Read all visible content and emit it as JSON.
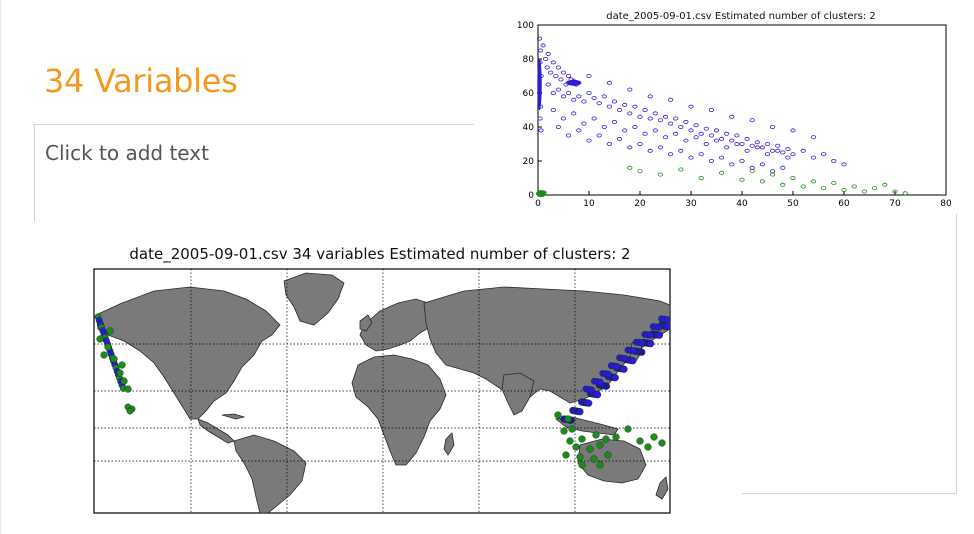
{
  "slide": {
    "title": "34 Variables",
    "placeholder_text": "Click to add text"
  },
  "colors": {
    "title": "#f39a1e",
    "cluster_blue": "#2b1cd6",
    "cluster_green": "#1c8a1c",
    "land": "#7a7a7a"
  },
  "chart_data": [
    {
      "type": "scatter",
      "title": "date_2005-09-01.csv   Estimated number of clusters: 2",
      "xlim": [
        0,
        80
      ],
      "ylim": [
        0,
        100
      ],
      "xticks": [
        0,
        10,
        20,
        30,
        40,
        50,
        60,
        70,
        80
      ],
      "yticks": [
        0,
        20,
        40,
        60,
        80,
        100
      ],
      "grid": false,
      "series": [
        {
          "color": "#2b1cd6",
          "points": [
            [
              0.3,
              92
            ],
            [
              0.5,
              85
            ],
            [
              0.4,
              78
            ],
            [
              0.6,
              70
            ],
            [
              0.3,
              60
            ],
            [
              0.5,
              52
            ],
            [
              0.4,
              45
            ],
            [
              0.6,
              38
            ],
            [
              1,
              88
            ],
            [
              1.5,
              80
            ],
            [
              2,
              83
            ],
            [
              1.8,
              75
            ],
            [
              2.5,
              72
            ],
            [
              3,
              78
            ],
            [
              3.5,
              70
            ],
            [
              4,
              75
            ],
            [
              4.5,
              68
            ],
            [
              5,
              72
            ],
            [
              5.5,
              65
            ],
            [
              6,
              70
            ],
            [
              2,
              65
            ],
            [
              3,
              60
            ],
            [
              4,
              62
            ],
            [
              5,
              58
            ],
            [
              6,
              60
            ],
            [
              7,
              56
            ],
            [
              8,
              58
            ],
            [
              9,
              55
            ],
            [
              10,
              60
            ],
            [
              11,
              57
            ],
            [
              12,
              54
            ],
            [
              13,
              58
            ],
            [
              14,
              52
            ],
            [
              15,
              55
            ],
            [
              16,
              50
            ],
            [
              17,
              53
            ],
            [
              18,
              48
            ],
            [
              19,
              52
            ],
            [
              20,
              46
            ],
            [
              21,
              50
            ],
            [
              22,
              45
            ],
            [
              23,
              48
            ],
            [
              24,
              44
            ],
            [
              25,
              46
            ],
            [
              26,
              42
            ],
            [
              27,
              45
            ],
            [
              28,
              40
            ],
            [
              29,
              43
            ],
            [
              30,
              38
            ],
            [
              31,
              41
            ],
            [
              32,
              36
            ],
            [
              33,
              39
            ],
            [
              34,
              35
            ],
            [
              35,
              38
            ],
            [
              36,
              33
            ],
            [
              37,
              36
            ],
            [
              38,
              32
            ],
            [
              39,
              35
            ],
            [
              40,
              30
            ],
            [
              41,
              33
            ],
            [
              42,
              29
            ],
            [
              43,
              31
            ],
            [
              44,
              28
            ],
            [
              45,
              30
            ],
            [
              46,
              26
            ],
            [
              47,
              29
            ],
            [
              48,
              25
            ],
            [
              49,
              27
            ],
            [
              50,
              24
            ],
            [
              52,
              26
            ],
            [
              54,
              22
            ],
            [
              56,
              24
            ],
            [
              58,
              20
            ],
            [
              60,
              18
            ],
            [
              3,
              50
            ],
            [
              5,
              45
            ],
            [
              7,
              48
            ],
            [
              9,
              42
            ],
            [
              11,
              45
            ],
            [
              13,
              40
            ],
            [
              15,
              43
            ],
            [
              17,
              38
            ],
            [
              19,
              40
            ],
            [
              21,
              36
            ],
            [
              23,
              38
            ],
            [
              25,
              34
            ],
            [
              27,
              36
            ],
            [
              29,
              32
            ],
            [
              31,
              34
            ],
            [
              33,
              30
            ],
            [
              35,
              32
            ],
            [
              37,
              28
            ],
            [
              39,
              30
            ],
            [
              41,
              26
            ],
            [
              43,
              28
            ],
            [
              45,
              24
            ],
            [
              47,
              26
            ],
            [
              49,
              22
            ],
            [
              4,
              40
            ],
            [
              6,
              35
            ],
            [
              8,
              38
            ],
            [
              10,
              32
            ],
            [
              12,
              35
            ],
            [
              14,
              30
            ],
            [
              16,
              33
            ],
            [
              18,
              28
            ],
            [
              20,
              30
            ],
            [
              22,
              26
            ],
            [
              24,
              28
            ],
            [
              26,
              24
            ],
            [
              28,
              26
            ],
            [
              30,
              22
            ],
            [
              32,
              24
            ],
            [
              34,
              20
            ],
            [
              36,
              22
            ],
            [
              38,
              18
            ],
            [
              40,
              20
            ],
            [
              42,
              16
            ],
            [
              44,
              18
            ],
            [
              46,
              14
            ],
            [
              48,
              16
            ],
            [
              10,
              70
            ],
            [
              14,
              66
            ],
            [
              18,
              62
            ],
            [
              22,
              58
            ],
            [
              26,
              56
            ],
            [
              30,
              52
            ],
            [
              34,
              50
            ],
            [
              38,
              46
            ],
            [
              42,
              44
            ],
            [
              46,
              40
            ],
            [
              50,
              38
            ],
            [
              54,
              34
            ],
            [
              6,
              66
            ],
            [
              7,
              67
            ],
            [
              8,
              66
            ],
            [
              6.5,
              68
            ],
            [
              7.5,
              65
            ]
          ]
        },
        {
          "color": "#1c8a1c",
          "points": [
            [
              0.5,
              1
            ],
            [
              1,
              0.5
            ],
            [
              1.2,
              1.5
            ],
            [
              18,
              16
            ],
            [
              20,
              14
            ],
            [
              24,
              12
            ],
            [
              28,
              15
            ],
            [
              32,
              10
            ],
            [
              36,
              13
            ],
            [
              40,
              9
            ],
            [
              42,
              14
            ],
            [
              44,
              8
            ],
            [
              46,
              12
            ],
            [
              48,
              6
            ],
            [
              50,
              10
            ],
            [
              52,
              5
            ],
            [
              54,
              8
            ],
            [
              56,
              4
            ],
            [
              58,
              7
            ],
            [
              60,
              3
            ],
            [
              62,
              5
            ],
            [
              64,
              2
            ],
            [
              66,
              4
            ],
            [
              68,
              6
            ],
            [
              70,
              2
            ],
            [
              72,
              1
            ]
          ]
        }
      ]
    },
    {
      "type": "map",
      "title": "date_2005-09-01.csv  34 variables Estimated number of clusters: 2",
      "projection": "mercator",
      "grid": true
    }
  ]
}
